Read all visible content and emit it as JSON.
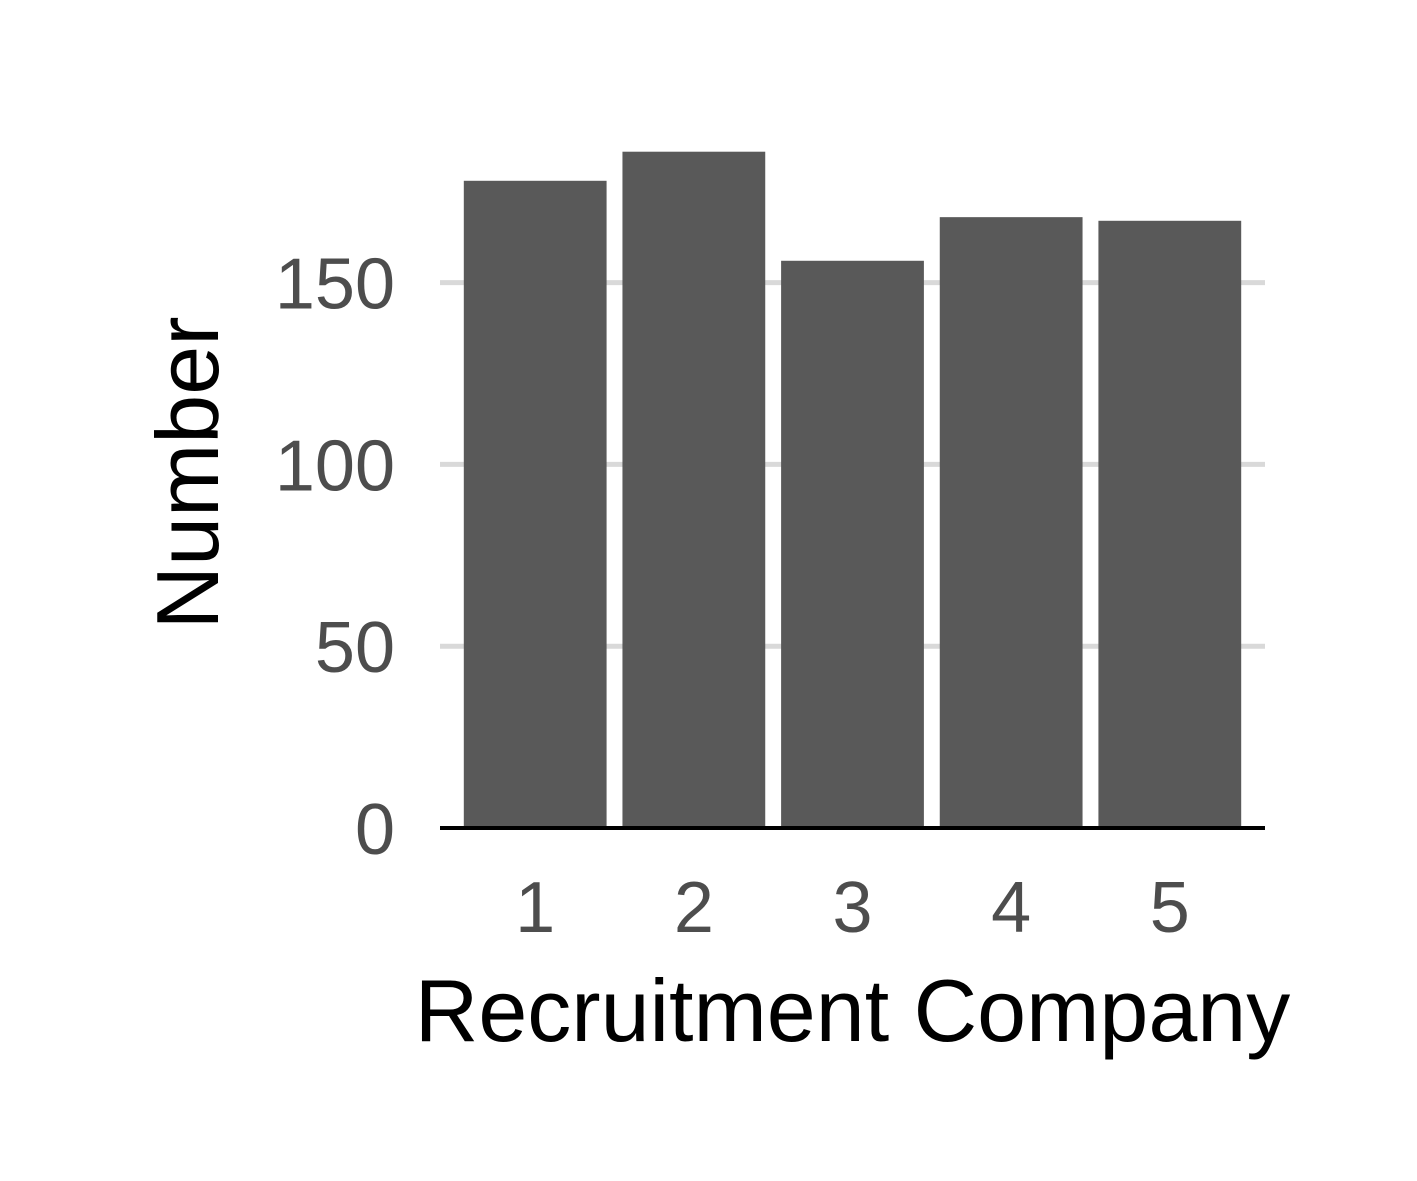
{
  "chart_data": {
    "type": "bar",
    "title": "",
    "xlabel": "Recruitment Company",
    "ylabel": "Number",
    "categories": [
      "1",
      "2",
      "3",
      "4",
      "5"
    ],
    "values": [
      178,
      186,
      156,
      168,
      167
    ],
    "ylim": [
      0,
      186
    ],
    "yticks": [
      0,
      50,
      100,
      150
    ],
    "grid": true,
    "legend": "none",
    "colors": {
      "bar": "#595959",
      "grid": "#d9d9d9",
      "axis_line": "#000000",
      "tick_text": "#4d4d4d",
      "title_text": "#000000",
      "background": "#ffffff"
    }
  }
}
